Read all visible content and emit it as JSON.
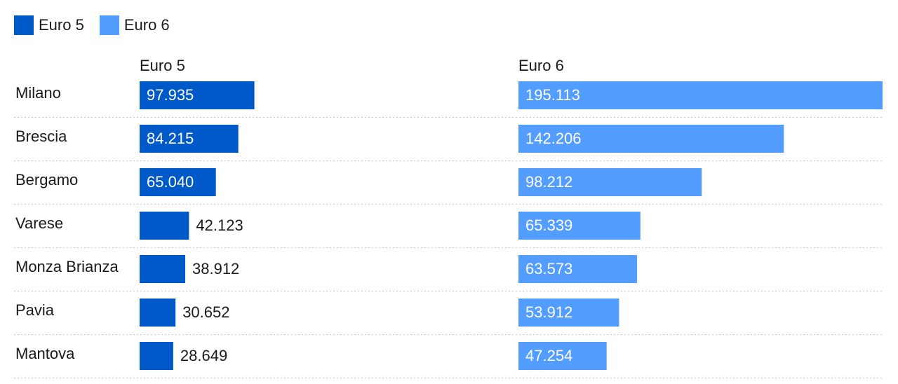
{
  "legend": [
    {
      "label": "Euro 5",
      "color": "#0059c9"
    },
    {
      "label": "Euro 6",
      "color": "#529dff"
    }
  ],
  "chart_data": {
    "type": "bar",
    "orientation": "horizontal",
    "layout": "small-multiples",
    "categories": [
      "Milano",
      "Brescia",
      "Bergamo",
      "Varese",
      "Monza Brianza",
      "Pavia",
      "Mantova"
    ],
    "series": [
      {
        "name": "Euro 5",
        "color": "#0059c9",
        "values": [
          97935,
          84215,
          65040,
          42123,
          38912,
          30652,
          28649
        ],
        "labels": [
          "97.935",
          "84.215",
          "65.040",
          "42.123",
          "38.912",
          "30.652",
          "28.649"
        ]
      },
      {
        "name": "Euro 6",
        "color": "#529dff",
        "values": [
          195113,
          142206,
          98212,
          65339,
          63573,
          53912,
          47254
        ],
        "labels": [
          "195.113",
          "142.206",
          "98.212",
          "65.339",
          "63.573",
          "53.912",
          "47.254"
        ]
      }
    ],
    "xlim": [
      0,
      195113
    ],
    "grid": false,
    "legend_position": "top-left"
  }
}
